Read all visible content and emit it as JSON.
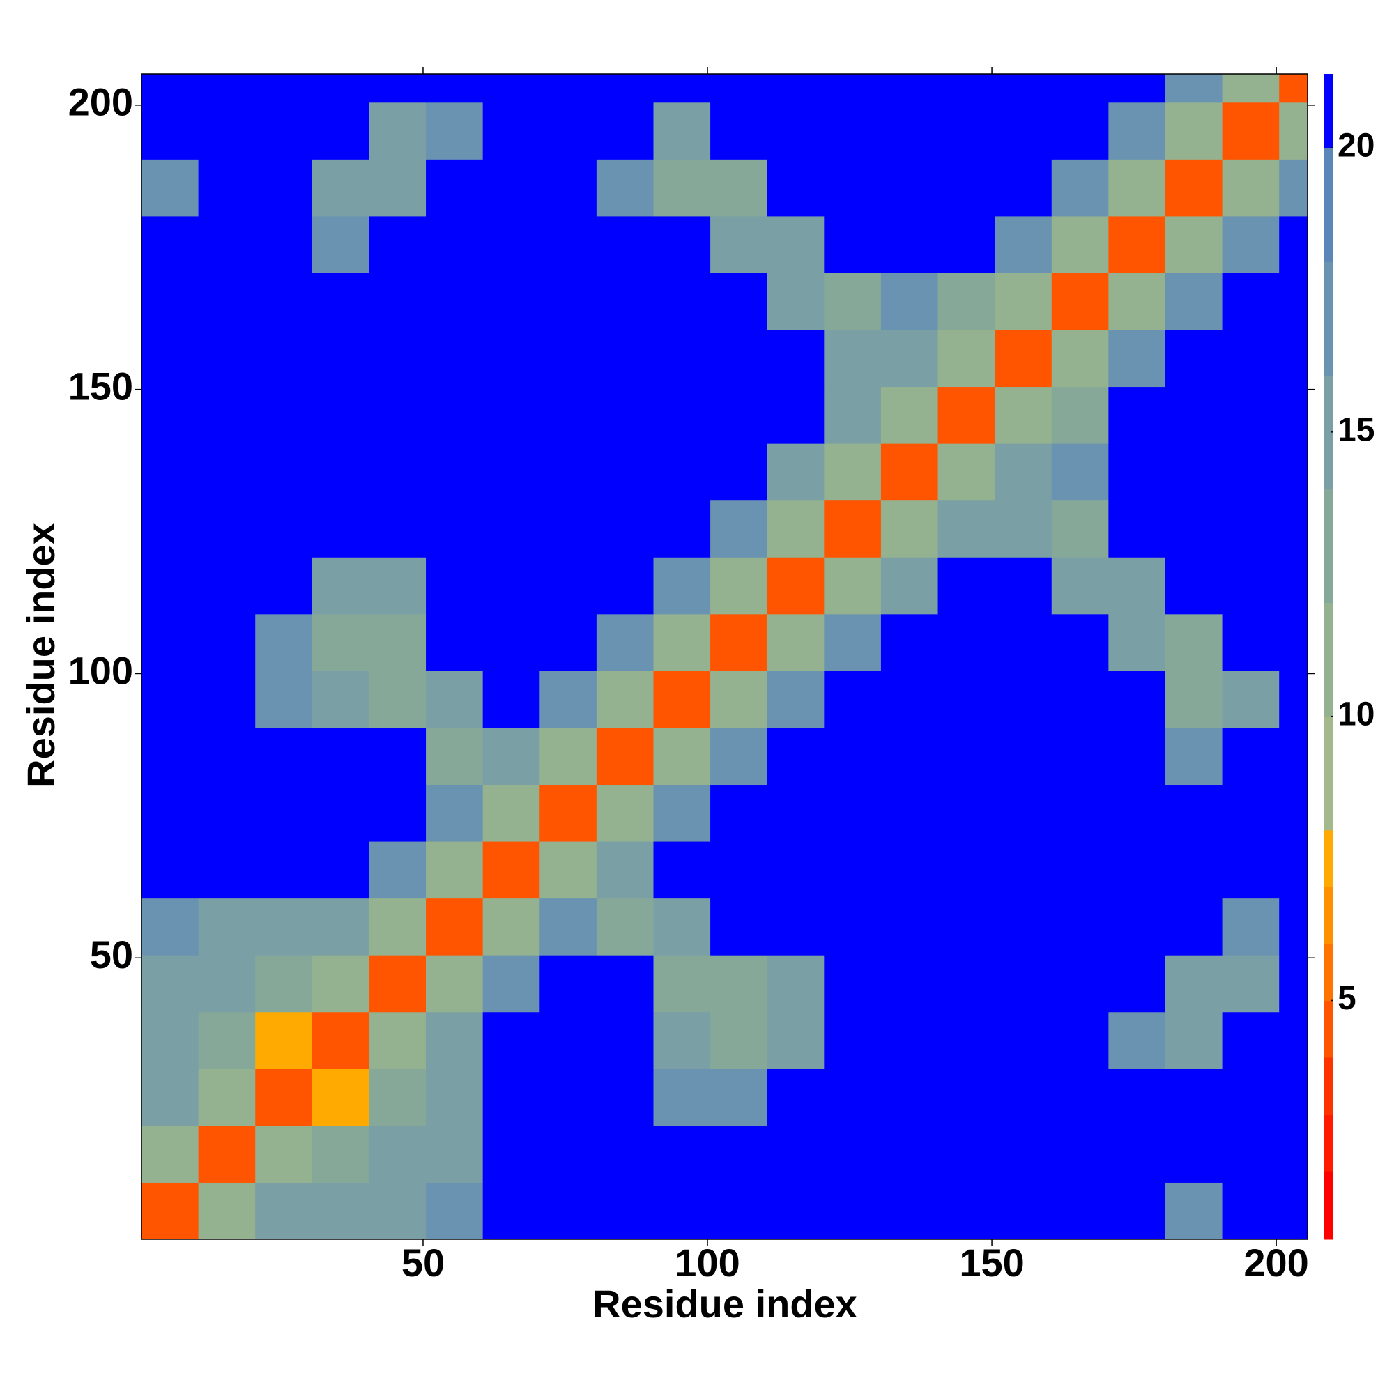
{
  "chart_data": {
    "type": "heatmap",
    "xlabel": "Residue index",
    "ylabel": "Residue index",
    "xlim": [
      0.5,
      205.5
    ],
    "ylim": [
      0.5,
      205.5
    ],
    "xticks": [
      50,
      100,
      150,
      200
    ],
    "yticks": [
      50,
      100,
      150,
      200
    ],
    "x_edges": [
      0.5,
      10.5,
      20.5,
      30.5,
      40.5,
      50.5,
      60.5,
      70.5,
      80.5,
      90.5,
      100.5,
      110.5,
      120.5,
      130.5,
      140.5,
      150.5,
      160.5,
      170.5,
      180.5,
      190.5,
      200.5,
      205.5
    ],
    "y_edges": [
      0.5,
      10.5,
      20.5,
      30.5,
      40.5,
      50.5,
      60.5,
      70.5,
      80.5,
      90.5,
      100.5,
      110.5,
      120.5,
      130.5,
      140.5,
      150.5,
      160.5,
      170.5,
      180.5,
      190.5,
      200.5,
      205.5
    ],
    "z": [
      [
        4,
        11,
        14,
        14,
        15,
        16,
        21,
        21,
        21,
        21,
        21,
        21,
        21,
        21,
        21,
        21,
        21,
        21,
        17,
        21,
        21
      ],
      [
        11,
        4,
        11,
        13,
        14,
        15,
        21,
        21,
        21,
        21,
        21,
        21,
        21,
        21,
        21,
        21,
        21,
        21,
        21,
        21,
        21
      ],
      [
        14,
        11,
        4,
        7,
        13,
        15,
        21,
        21,
        21,
        17,
        17,
        21,
        21,
        21,
        21,
        21,
        21,
        21,
        21,
        21,
        21
      ],
      [
        14,
        13,
        7,
        4,
        11,
        14,
        21,
        21,
        21,
        15,
        13,
        15,
        21,
        21,
        21,
        21,
        21,
        17,
        15,
        21,
        21
      ],
      [
        15,
        14,
        13,
        11,
        4,
        11,
        17,
        21,
        21,
        13,
        12,
        15,
        21,
        21,
        21,
        21,
        21,
        21,
        14,
        14,
        21
      ],
      [
        16,
        15,
        15,
        14,
        11,
        4,
        11,
        16,
        13,
        14,
        21,
        21,
        21,
        21,
        21,
        21,
        21,
        21,
        21,
        16,
        21
      ],
      [
        21,
        21,
        21,
        21,
        17,
        11,
        4,
        11,
        14,
        21,
        21,
        21,
        21,
        21,
        21,
        21,
        21,
        21,
        21,
        21,
        21
      ],
      [
        21,
        21,
        21,
        21,
        21,
        16,
        11,
        4,
        11,
        17,
        21,
        21,
        21,
        21,
        21,
        21,
        21,
        21,
        21,
        21,
        21
      ],
      [
        21,
        21,
        21,
        21,
        21,
        13,
        14,
        11,
        4,
        11,
        17,
        21,
        21,
        21,
        21,
        21,
        21,
        21,
        16,
        21,
        21
      ],
      [
        21,
        21,
        17,
        15,
        13,
        14,
        21,
        17,
        11,
        4,
        11,
        17,
        21,
        21,
        21,
        21,
        21,
        21,
        13,
        14,
        21
      ],
      [
        21,
        21,
        17,
        13,
        12,
        21,
        21,
        21,
        17,
        11,
        4,
        11,
        17,
        21,
        21,
        21,
        21,
        14,
        13,
        21,
        21
      ],
      [
        21,
        21,
        21,
        15,
        15,
        21,
        21,
        21,
        21,
        17,
        11,
        4,
        11,
        14,
        21,
        21,
        14,
        15,
        21,
        21,
        21
      ],
      [
        21,
        21,
        21,
        21,
        21,
        21,
        21,
        21,
        21,
        21,
        17,
        11,
        4,
        11,
        15,
        14,
        13,
        21,
        21,
        21,
        21
      ],
      [
        21,
        21,
        21,
        21,
        21,
        21,
        21,
        21,
        21,
        21,
        21,
        14,
        11,
        4,
        11,
        15,
        16,
        21,
        21,
        21,
        21
      ],
      [
        21,
        21,
        21,
        21,
        21,
        21,
        21,
        21,
        21,
        21,
        21,
        21,
        15,
        11,
        4,
        11,
        13,
        21,
        21,
        21,
        21
      ],
      [
        21,
        21,
        21,
        21,
        21,
        21,
        21,
        21,
        21,
        21,
        21,
        21,
        14,
        15,
        11,
        4,
        11,
        17,
        21,
        21,
        21
      ],
      [
        21,
        21,
        21,
        21,
        21,
        21,
        21,
        21,
        21,
        21,
        21,
        14,
        13,
        16,
        13,
        11,
        4,
        11,
        17,
        21,
        21
      ],
      [
        21,
        21,
        21,
        17,
        21,
        21,
        21,
        21,
        21,
        21,
        14,
        15,
        21,
        21,
        21,
        17,
        11,
        4,
        11,
        17,
        21
      ],
      [
        17,
        21,
        21,
        15,
        14,
        21,
        21,
        21,
        16,
        13,
        13,
        21,
        21,
        21,
        21,
        21,
        17,
        11,
        4,
        11,
        17
      ],
      [
        21,
        21,
        21,
        21,
        14,
        16,
        21,
        21,
        21,
        14,
        21,
        21,
        21,
        21,
        21,
        21,
        21,
        17,
        11,
        4,
        11
      ],
      [
        21,
        21,
        21,
        21,
        21,
        21,
        21,
        21,
        21,
        21,
        21,
        21,
        21,
        21,
        21,
        21,
        21,
        21,
        17,
        11,
        4
      ]
    ],
    "zlim": [
      0.8,
      21.3
    ],
    "cbar_ticks": [
      5,
      10,
      15,
      20
    ],
    "color_bounds": [
      0.8,
      2,
      3,
      4,
      5,
      6,
      7,
      8,
      10,
      12,
      14,
      16,
      18,
      20,
      21.3
    ],
    "colors": [
      "#ff0000",
      "#ff1a00",
      "#ff3300",
      "#ff5500",
      "#ff7300",
      "#ff9000",
      "#ffaa00",
      "#a3b98b",
      "#94b290",
      "#86a899",
      "#7a9fa5",
      "#6993b0",
      "#5a86b8",
      "#0000ff"
    ]
  }
}
